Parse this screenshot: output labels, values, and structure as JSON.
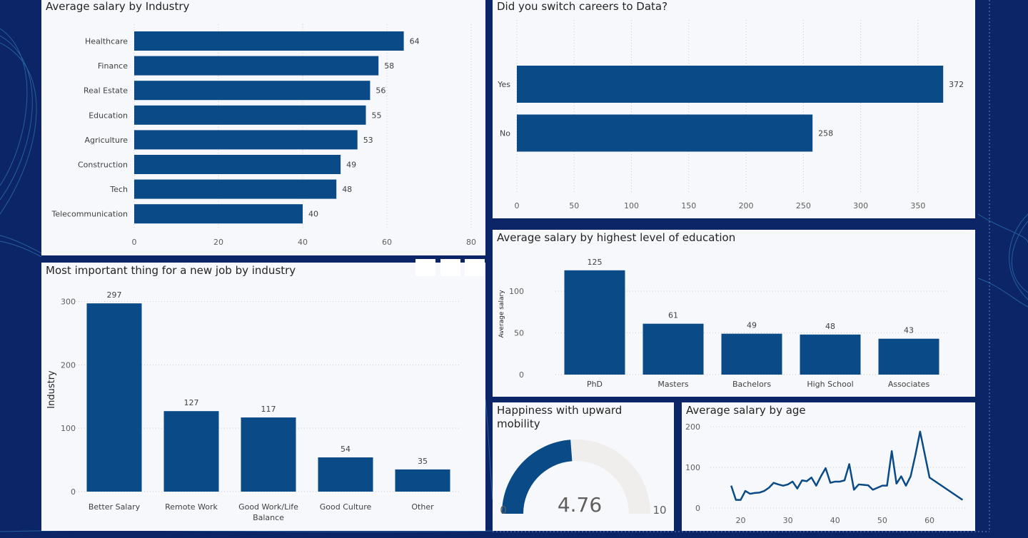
{
  "colors": {
    "bar": "#0a4a87",
    "background": "#0c2566",
    "panel": "#f6f8fb",
    "gauge_empty": "#efeeec"
  },
  "industry_chart": {
    "title": "Average salary by Industry",
    "chart_data": {
      "type": "bar",
      "orientation": "horizontal",
      "categories": [
        "Healthcare",
        "Finance",
        "Real Estate",
        "Education",
        "Agriculture",
        "Construction",
        "Tech",
        "Telecommunication"
      ],
      "values": [
        64,
        58,
        56,
        55,
        53,
        49,
        48,
        40
      ],
      "xlim": [
        0,
        80
      ],
      "xticks": [
        "0",
        "20",
        "40",
        "60",
        "80"
      ],
      "title": "Average salary by Industry",
      "xlabel": "",
      "ylabel": ""
    }
  },
  "switch_chart": {
    "title": "Did you switch careers to Data?",
    "chart_data": {
      "type": "bar",
      "orientation": "horizontal",
      "categories": [
        "Yes",
        "No"
      ],
      "values": [
        372,
        258
      ],
      "xlim": [
        0,
        375
      ],
      "xticks": [
        "0",
        "50",
        "100",
        "150",
        "200",
        "250",
        "300",
        "350"
      ],
      "title": "Did you switch careers to Data?",
      "xlabel": "",
      "ylabel": ""
    }
  },
  "important_chart": {
    "title": "Most important thing for a new job by industry",
    "chart_data": {
      "type": "bar",
      "orientation": "vertical",
      "categories": [
        "Better Salary",
        "Remote Work",
        "Good Work/Life Balance",
        "Good Culture",
        "Other"
      ],
      "category_lines": [
        [
          "Better Salary"
        ],
        [
          "Remote Work"
        ],
        [
          "Good Work/Life",
          "Balance"
        ],
        [
          "Good Culture"
        ],
        [
          "Other"
        ]
      ],
      "values": [
        297,
        127,
        117,
        54,
        35
      ],
      "ylim": [
        0,
        300
      ],
      "yticks": [
        "0",
        "100",
        "200",
        "300"
      ],
      "title": "Most important thing for a new job by industry",
      "xlabel": "",
      "ylabel": "Industry"
    }
  },
  "education_chart": {
    "title": "Average salary by highest level of education",
    "chart_data": {
      "type": "bar",
      "orientation": "vertical",
      "categories": [
        "PhD",
        "Masters",
        "Bachelors",
        "High School",
        "Associates"
      ],
      "values": [
        125,
        61,
        49,
        48,
        43
      ],
      "ylim": [
        0,
        130
      ],
      "yticks": [
        "0",
        "50",
        "100"
      ],
      "title": "Average salary by highest level of education",
      "xlabel": "",
      "ylabel": "Average salary"
    }
  },
  "happiness_gauge": {
    "title": "Happiness with upward mobility",
    "title_lines": [
      "Happiness with upward",
      "mobility"
    ],
    "chart_data": {
      "type": "gauge",
      "value": 4.76,
      "value_label": "4.76",
      "min": 0,
      "max": 10,
      "min_label": "0",
      "max_label": "10"
    }
  },
  "age_chart": {
    "title": "Average salary by age",
    "chart_data": {
      "type": "line",
      "x": [
        18,
        19,
        20,
        21,
        22,
        23,
        24,
        25,
        26,
        27,
        28,
        29,
        30,
        31,
        32,
        33,
        34,
        35,
        36,
        37,
        38,
        39,
        40,
        41,
        42,
        43,
        44,
        45,
        46,
        47,
        48,
        49,
        50,
        51,
        52,
        53,
        54,
        55,
        56,
        57,
        58,
        60,
        67
      ],
      "y": [
        55,
        20,
        20,
        42,
        35,
        37,
        38,
        42,
        50,
        62,
        58,
        55,
        58,
        65,
        48,
        68,
        66,
        75,
        55,
        78,
        98,
        62,
        65,
        65,
        68,
        108,
        45,
        58,
        57,
        56,
        45,
        50,
        55,
        55,
        140,
        60,
        78,
        55,
        78,
        130,
        188,
        75,
        20
      ],
      "xlim": [
        16,
        68
      ],
      "ylim": [
        0,
        200
      ],
      "xticks": [
        "20",
        "30",
        "40",
        "50",
        "60"
      ],
      "yticks": [
        "0",
        "100",
        "200"
      ],
      "title": "Average salary by age",
      "xlabel": "",
      "ylabel": ""
    }
  }
}
